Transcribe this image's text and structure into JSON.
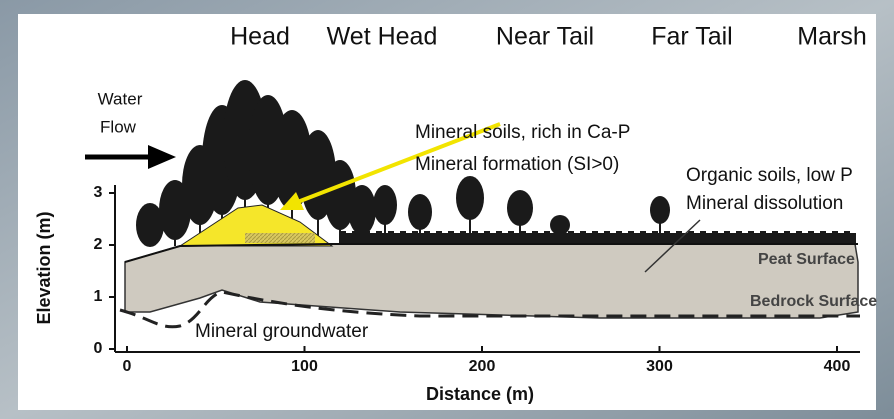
{
  "zones": [
    "Head",
    "Wet Head",
    "Near Tail",
    "Far Tail",
    "Marsh"
  ],
  "water_flow": [
    "Water",
    "Flow"
  ],
  "annotations": {
    "mineral_soils": "Mineral soils, rich in Ca-P",
    "mineral_formation": "Mineral formation (SI>0)",
    "organic_soils": "Organic soils, low P",
    "mineral_dissolution": "Mineral dissolution",
    "peat_surface": "Peat Surface",
    "bedrock_surface": "Bedrock Surface",
    "mineral_groundwater": "Mineral groundwater"
  },
  "axes": {
    "y_label": "Elevation (m)",
    "x_label": "Distance (m)",
    "yticks": [
      0,
      1,
      2,
      3
    ],
    "xticks": [
      0,
      100,
      200,
      300,
      400
    ]
  }
}
